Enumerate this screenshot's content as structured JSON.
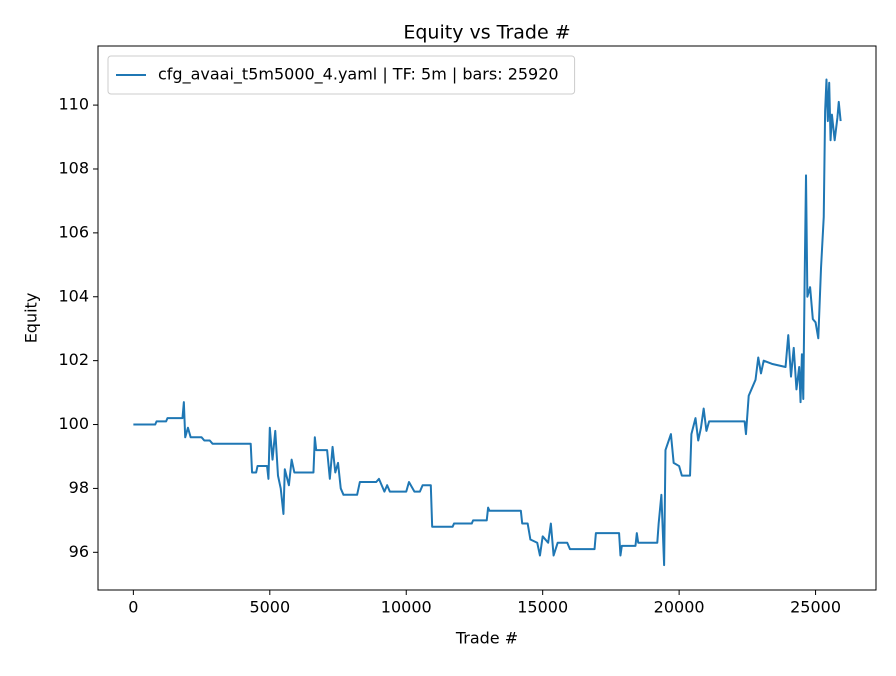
{
  "chart_data": {
    "type": "line",
    "title": "Equity vs Trade #",
    "xlabel": "Trade #",
    "ylabel": "Equity",
    "x": [
      0,
      800,
      850,
      1200,
      1250,
      1800,
      1850,
      1900,
      2000,
      2100,
      2500,
      2600,
      2800,
      2900,
      4300,
      4350,
      4500,
      4550,
      4900,
      4950,
      5000,
      5100,
      5200,
      5300,
      5400,
      5500,
      5550,
      5700,
      5800,
      5900,
      6600,
      6650,
      6700,
      7100,
      7200,
      7300,
      7400,
      7500,
      7600,
      7700,
      8200,
      8300,
      8900,
      9000,
      9200,
      9300,
      9400,
      10000,
      10100,
      10300,
      10500,
      10600,
      10900,
      10950,
      11700,
      11750,
      12400,
      12450,
      12950,
      13000,
      13050,
      14200,
      14250,
      14450,
      14550,
      14800,
      14900,
      15000,
      15200,
      15300,
      15400,
      15550,
      15900,
      16000,
      16900,
      16950,
      17800,
      17850,
      17900,
      18400,
      18450,
      18500,
      19200,
      19250,
      19350,
      19450,
      19500,
      19700,
      19800,
      20000,
      20100,
      20400,
      20450,
      20600,
      20700,
      20800,
      20900,
      21000,
      21100,
      22400,
      22450,
      22550,
      22700,
      22800,
      22900,
      23000,
      23100,
      23400,
      23900,
      24000,
      24100,
      24200,
      24300,
      24400,
      24450,
      24500,
      24550,
      24600,
      24650,
      24700,
      24800,
      24900,
      25000,
      25100,
      25200,
      25300,
      25350,
      25400,
      25450,
      25500,
      25550,
      25600,
      25700,
      25800,
      25850,
      25919
    ],
    "series": [
      {
        "name": "cfg_avaai_t5m5000_4.yaml | TF: 5m | bars: 25920",
        "color": "#1f77b4",
        "values": [
          100,
          100,
          100.1,
          100.1,
          100.2,
          100.2,
          100.7,
          99.6,
          99.9,
          99.6,
          99.6,
          99.5,
          99.5,
          99.4,
          99.4,
          98.5,
          98.5,
          98.7,
          98.7,
          98.3,
          99.9,
          98.9,
          99.8,
          98.4,
          98.0,
          97.2,
          98.6,
          98.1,
          98.9,
          98.5,
          98.5,
          99.6,
          99.2,
          99.2,
          98.3,
          99.3,
          98.5,
          98.8,
          98.0,
          97.8,
          97.8,
          98.2,
          98.2,
          98.3,
          97.9,
          98.1,
          97.9,
          97.9,
          98.2,
          97.9,
          97.9,
          98.1,
          98.1,
          96.8,
          96.8,
          96.9,
          96.9,
          97.0,
          97.0,
          97.4,
          97.3,
          97.3,
          96.9,
          96.9,
          96.4,
          96.3,
          95.9,
          96.5,
          96.3,
          96.9,
          95.9,
          96.3,
          96.3,
          96.1,
          96.1,
          96.6,
          96.6,
          95.9,
          96.2,
          96.2,
          96.6,
          96.3,
          96.3,
          96.9,
          97.8,
          95.6,
          99.2,
          99.7,
          98.8,
          98.7,
          98.4,
          98.4,
          99.7,
          100.2,
          99.5,
          99.9,
          100.5,
          99.8,
          100.1,
          100.1,
          99.7,
          100.9,
          101.2,
          101.4,
          102.1,
          101.6,
          102.0,
          101.9,
          101.8,
          102.8,
          101.5,
          102.4,
          101.1,
          101.8,
          100.7,
          102.2,
          100.8,
          104.5,
          107.8,
          104.0,
          104.3,
          103.3,
          103.2,
          102.7,
          104.9,
          106.5,
          109.8,
          110.8,
          109.5,
          110.7,
          108.9,
          109.7,
          108.9,
          109.6,
          110.1,
          109.5
        ]
      }
    ],
    "xlim": [
      -1296,
      27215
    ],
    "ylim": [
      94.82,
      111.85
    ],
    "xticks": [
      0,
      5000,
      10000,
      15000,
      20000,
      25000
    ],
    "yticks": [
      96,
      98,
      100,
      102,
      104,
      106,
      108,
      110
    ],
    "grid": false,
    "legend": "upper left"
  }
}
